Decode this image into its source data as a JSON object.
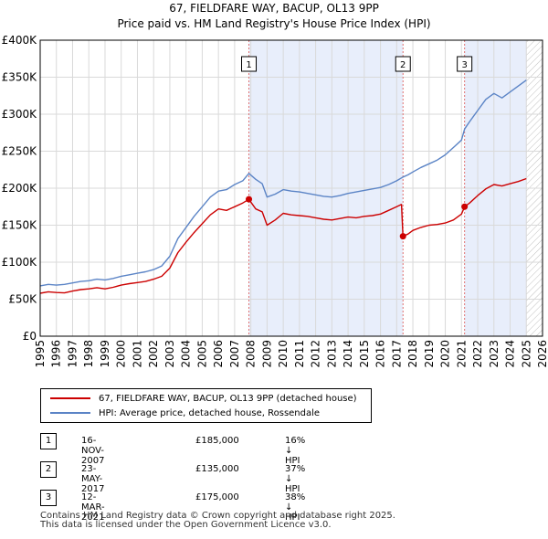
{
  "title": {
    "line1": "67, FIELDFARE WAY, BACUP, OL13 9PP",
    "line2": "Price paid vs. HM Land Registry's House Price Index (HPI)"
  },
  "chart_data": {
    "type": "line",
    "title": "Price paid vs. HM Land Registry's House Price Index (HPI)",
    "xlabel": "",
    "ylabel": "",
    "xlim": [
      1995,
      2026
    ],
    "ylim": [
      0,
      400000
    ],
    "x_ticks": [
      1995,
      1996,
      1997,
      1998,
      1999,
      2000,
      2001,
      2002,
      2003,
      2004,
      2005,
      2006,
      2007,
      2008,
      2009,
      2010,
      2011,
      2012,
      2013,
      2014,
      2015,
      2016,
      2017,
      2018,
      2019,
      2020,
      2021,
      2022,
      2023,
      2024,
      2025,
      2026
    ],
    "y_ticks": [
      0,
      50000,
      100000,
      150000,
      200000,
      250000,
      300000,
      350000,
      400000
    ],
    "y_tick_labels": [
      "£0",
      "£50K",
      "£100K",
      "£150K",
      "£200K",
      "£250K",
      "£300K",
      "£350K",
      "£400K"
    ],
    "grid": true,
    "shaded_spans": [
      [
        2007.88,
        2017.39
      ],
      [
        2021.19,
        2025.0
      ]
    ],
    "hatched_future_from": 2025.0,
    "series": [
      {
        "name": "67, FIELDFARE WAY, BACUP, OL13 9PP (detached house)",
        "color": "#cc0000",
        "x": [
          1995.0,
          1995.5,
          1996.0,
          1996.5,
          1997.0,
          1997.5,
          1998.0,
          1998.5,
          1999.0,
          1999.5,
          2000.0,
          2000.5,
          2001.0,
          2001.5,
          2002.0,
          2002.5,
          2003.0,
          2003.5,
          2004.0,
          2004.5,
          2005.0,
          2005.5,
          2006.0,
          2006.5,
          2007.0,
          2007.5,
          2007.88,
          2008.3,
          2008.7,
          2009.0,
          2009.5,
          2010.0,
          2010.5,
          2011.0,
          2011.5,
          2012.0,
          2012.5,
          2013.0,
          2013.5,
          2014.0,
          2014.5,
          2015.0,
          2015.5,
          2016.0,
          2016.5,
          2017.0,
          2017.3,
          2017.39,
          2017.7,
          2018.0,
          2018.5,
          2019.0,
          2019.5,
          2020.0,
          2020.5,
          2021.0,
          2021.19,
          2021.5,
          2022.0,
          2022.5,
          2023.0,
          2023.5,
          2024.0,
          2024.5,
          2025.0
        ],
        "y": [
          58000,
          60000,
          59000,
          58500,
          61000,
          63000,
          64000,
          65500,
          64000,
          66000,
          69000,
          71000,
          72500,
          74000,
          77000,
          81000,
          92000,
          113000,
          127000,
          140000,
          152000,
          164000,
          172000,
          170000,
          175000,
          180000,
          185000,
          172000,
          168000,
          150000,
          157000,
          166000,
          164000,
          163000,
          162000,
          160000,
          158000,
          157000,
          159000,
          161000,
          160000,
          162000,
          163000,
          165000,
          170000,
          175000,
          178000,
          135000,
          138000,
          143000,
          147000,
          150000,
          151000,
          153000,
          157000,
          165000,
          175000,
          180000,
          190000,
          199000,
          205000,
          203000,
          206000,
          209000,
          213000
        ]
      },
      {
        "name": "HPI: Average price, detached house, Rossendale",
        "color": "#5b84c6",
        "x": [
          1995.0,
          1995.5,
          1996.0,
          1996.5,
          1997.0,
          1997.5,
          1998.0,
          1998.5,
          1999.0,
          1999.5,
          2000.0,
          2000.5,
          2001.0,
          2001.5,
          2002.0,
          2002.5,
          2003.0,
          2003.5,
          2004.0,
          2004.5,
          2005.0,
          2005.5,
          2006.0,
          2006.5,
          2007.0,
          2007.5,
          2007.88,
          2008.3,
          2008.7,
          2009.0,
          2009.5,
          2010.0,
          2010.5,
          2011.0,
          2011.5,
          2012.0,
          2012.5,
          2013.0,
          2013.5,
          2014.0,
          2014.5,
          2015.0,
          2015.5,
          2016.0,
          2016.5,
          2017.0,
          2017.39,
          2017.7,
          2018.0,
          2018.5,
          2019.0,
          2019.5,
          2020.0,
          2020.5,
          2021.0,
          2021.19,
          2021.5,
          2022.0,
          2022.5,
          2023.0,
          2023.5,
          2024.0,
          2024.5,
          2025.0
        ],
        "y": [
          68000,
          70000,
          69000,
          70000,
          72000,
          74000,
          75000,
          77000,
          76000,
          78000,
          81000,
          83000,
          85000,
          87000,
          90000,
          95000,
          108000,
          132000,
          147000,
          162000,
          175000,
          188000,
          196000,
          198000,
          205000,
          210000,
          220000,
          212000,
          206000,
          188000,
          192000,
          198000,
          196000,
          195000,
          193000,
          191000,
          189000,
          188000,
          190000,
          193000,
          195000,
          197000,
          199000,
          201000,
          205000,
          210000,
          215000,
          218000,
          222000,
          228000,
          233000,
          238000,
          245000,
          255000,
          265000,
          280000,
          290000,
          305000,
          320000,
          328000,
          322000,
          330000,
          338000,
          346000
        ]
      }
    ],
    "annotations": [
      {
        "label": "1",
        "x": 2007.88,
        "y": 185000
      },
      {
        "label": "2",
        "x": 2017.39,
        "y": 135000
      },
      {
        "label": "3",
        "x": 2021.19,
        "y": 175000
      }
    ]
  },
  "legend": {
    "property_label": "67, FIELDFARE WAY, BACUP, OL13 9PP (detached house)",
    "hpi_label": "HPI: Average price, detached house, Rossendale"
  },
  "transactions": [
    {
      "num": "1",
      "date": "16-NOV-2007",
      "price": "£185,000",
      "diff": "16% ↓ HPI"
    },
    {
      "num": "2",
      "date": "23-MAY-2017",
      "price": "£135,000",
      "diff": "37% ↓ HPI"
    },
    {
      "num": "3",
      "date": "12-MAR-2021",
      "price": "£175,000",
      "diff": "38% ↓ HPI"
    }
  ],
  "footer": {
    "line1": "Contains HM Land Registry data © Crown copyright and database right 2025.",
    "line2": "This data is licensed under the Open Government Licence v3.0."
  },
  "colors": {
    "property": "#cc0000",
    "hpi": "#5b84c6",
    "span_fill": "#e8eefb",
    "grid": "#d9d9d9",
    "marker_line": "#e07070"
  }
}
